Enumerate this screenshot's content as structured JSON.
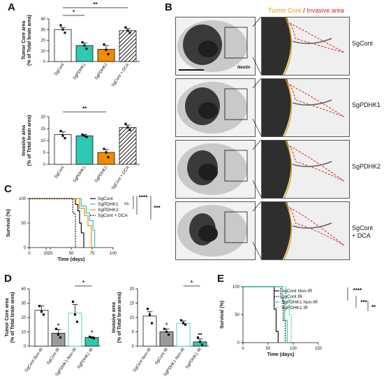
{
  "panels": {
    "A": "A",
    "B": "B",
    "C": "C",
    "D": "D",
    "E": "E"
  },
  "colors": {
    "SgCont": "#ffffff",
    "SgPDHK1": "#2ec9b2",
    "SgPDHK2": "#f08c00",
    "DCA": "#111111",
    "grey": "#9b9b9b",
    "tumor_core_line": "#e5a100",
    "invasive_line": "#e02020"
  },
  "panel_B": {
    "header_core": "Tumor Core",
    "header_sep": " / ",
    "header_invasive": "Invasive area",
    "marker_label": "Nestin",
    "conditions": [
      "SgCont",
      "SgPDHK1",
      "SgPDHK2",
      "SgCont + DCA"
    ]
  },
  "chart_data": [
    {
      "id": "A-top",
      "type": "bar",
      "ylabel": "Tumor Core area (% of Total brain area)",
      "categories": [
        "SgCont",
        "SgPDHK1",
        "SgPDHK2",
        "SgCont + DCA"
      ],
      "values": [
        30,
        15,
        11.5,
        29
      ],
      "errors": [
        2,
        2.5,
        3.5,
        2
      ],
      "points": [
        [
          34,
          30,
          27
        ],
        [
          18,
          15,
          12
        ],
        [
          16,
          11,
          7
        ],
        [
          32,
          29,
          27
        ]
      ],
      "ylim": [
        0,
        40
      ],
      "yticks": [
        0,
        10,
        20,
        30,
        40
      ],
      "significance": [
        {
          "from": 0,
          "to": 1,
          "label": "*"
        },
        {
          "from": 0,
          "to": 3,
          "label": "**"
        }
      ]
    },
    {
      "id": "A-bottom",
      "type": "bar",
      "ylabel": "Invasive area (% of Total brain area)",
      "categories": [
        "SgCont",
        "SgPDHK1",
        "SgPDHK2",
        "SgCont + DCA"
      ],
      "values": [
        12.5,
        12,
        5,
        15.5
      ],
      "errors": [
        1.2,
        0.5,
        1.2,
        1
      ],
      "points": [
        [
          14,
          12,
          11
        ],
        [
          12.5,
          12,
          11.5
        ],
        [
          6.5,
          5,
          3
        ],
        [
          17,
          15.5,
          14.5
        ]
      ],
      "ylim": [
        0,
        20
      ],
      "yticks": [
        0,
        5,
        10,
        15,
        20
      ],
      "significance": [
        {
          "from": 0,
          "to": 2,
          "label": "**"
        }
      ]
    },
    {
      "id": "C",
      "type": "line",
      "ylabel": "Survival (%)",
      "xlabel": "Time (days)",
      "xlim": [
        0,
        100
      ],
      "ylim": [
        0,
        100
      ],
      "xticks": [
        0,
        20,
        25,
        50,
        75,
        100
      ],
      "yticks": [
        0,
        50,
        100
      ],
      "series": [
        {
          "name": "SgCont",
          "steps": [
            [
              0,
              100
            ],
            [
              55,
              100
            ],
            [
              55,
              88
            ],
            [
              58,
              88
            ],
            [
              58,
              75
            ],
            [
              60,
              75
            ],
            [
              60,
              50
            ],
            [
              62,
              50
            ],
            [
              62,
              30
            ],
            [
              65,
              30
            ],
            [
              65,
              0
            ]
          ]
        },
        {
          "name": "SgPDHK1",
          "steps": [
            [
              0,
              100
            ],
            [
              62,
              100
            ],
            [
              62,
              85
            ],
            [
              68,
              85
            ],
            [
              68,
              70
            ],
            [
              72,
              70
            ],
            [
              72,
              55
            ],
            [
              76,
              55
            ],
            [
              76,
              35
            ],
            [
              78,
              35
            ],
            [
              78,
              0
            ]
          ]
        },
        {
          "name": "SgPDHK2",
          "steps": [
            [
              0,
              100
            ],
            [
              60,
              100
            ],
            [
              60,
              80
            ],
            [
              66,
              80
            ],
            [
              66,
              65
            ],
            [
              70,
              65
            ],
            [
              70,
              45
            ],
            [
              74,
              45
            ],
            [
              74,
              0
            ]
          ]
        },
        {
          "name": "SgCont + DCA",
          "steps": [
            [
              0,
              100
            ],
            [
              52,
              100
            ],
            [
              52,
              70
            ],
            [
              55,
              70
            ],
            [
              55,
              0
            ]
          ]
        }
      ],
      "significance": [
        {
          "label": "ns."
        },
        {
          "label": "****"
        },
        {
          "label": "***"
        }
      ]
    },
    {
      "id": "D-left",
      "type": "bar",
      "ylabel": "Tumor Core area (% of Total brain area)",
      "categories": [
        "SgCont Non-IR",
        "SgCont IR",
        "SgPDHK1 Non-IR",
        "SgPDHK1 IR"
      ],
      "values": [
        25,
        9,
        23,
        6
      ],
      "errors": [
        3,
        2.5,
        6,
        0.5
      ],
      "points": [
        [
          28,
          24,
          22
        ],
        [
          12,
          8,
          6
        ],
        [
          31,
          22,
          17
        ],
        [
          6.5,
          6,
          5.5
        ]
      ],
      "ylim": [
        0,
        40
      ],
      "yticks": [
        0,
        10,
        20,
        30,
        40
      ],
      "asterisks": [
        null,
        "*",
        null,
        "*"
      ],
      "significance": [
        {
          "from": 2,
          "to": 3,
          "label": "*"
        }
      ]
    },
    {
      "id": "D-right",
      "type": "bar",
      "ylabel": "Invasive area (% of Total brain area)",
      "categories": [
        "SgCont Non-IR",
        "SgCont IR",
        "SgPDHK1 Non-IR",
        "SgPDHK1 IR"
      ],
      "values": [
        10.5,
        5,
        8,
        1.5
      ],
      "errors": [
        1.5,
        1,
        0.8,
        1
      ],
      "points": [
        [
          13,
          11,
          8
        ],
        [
          6,
          5,
          4
        ],
        [
          9,
          8,
          7.5
        ],
        [
          3,
          1.5,
          0.5
        ]
      ],
      "ylim": [
        0,
        20
      ],
      "yticks": [
        0,
        5,
        10,
        15,
        20
      ],
      "asterisks": [
        null,
        "*",
        null,
        "**"
      ],
      "significance": [
        {
          "from": 2,
          "to": 3,
          "label": "*"
        }
      ]
    },
    {
      "id": "E",
      "type": "line",
      "ylabel": "Survival (%)",
      "xlabel": "Time (days)",
      "xlim": [
        0,
        150
      ],
      "ylim": [
        0,
        100
      ],
      "xticks": [
        0,
        50,
        100,
        150
      ],
      "yticks": [
        0,
        50,
        100
      ],
      "series": [
        {
          "name": "SgCont Non-IR",
          "steps": [
            [
              0,
              100
            ],
            [
              62,
              100
            ],
            [
              62,
              60
            ],
            [
              66,
              60
            ],
            [
              66,
              20
            ],
            [
              70,
              20
            ],
            [
              70,
              0
            ]
          ]
        },
        {
          "name": "SgCont IR",
          "steps": [
            [
              0,
              100
            ],
            [
              75,
              100
            ],
            [
              75,
              80
            ],
            [
              80,
              80
            ],
            [
              80,
              40
            ],
            [
              84,
              40
            ],
            [
              84,
              0
            ]
          ]
        },
        {
          "name": "SgPDHK1 Non-IR",
          "steps": [
            [
              0,
              100
            ],
            [
              78,
              100
            ],
            [
              78,
              75
            ],
            [
              83,
              75
            ],
            [
              83,
              40
            ],
            [
              88,
              40
            ],
            [
              88,
              0
            ]
          ]
        },
        {
          "name": "SgPDHK1 IR",
          "steps": [
            [
              0,
              100
            ],
            [
              85,
              100
            ],
            [
              85,
              80
            ],
            [
              92,
              80
            ],
            [
              92,
              50
            ],
            [
              96,
              50
            ],
            [
              96,
              0
            ]
          ]
        }
      ],
      "significance": [
        {
          "label": "****"
        },
        {
          "label": "***"
        },
        {
          "label": "**"
        }
      ]
    }
  ]
}
